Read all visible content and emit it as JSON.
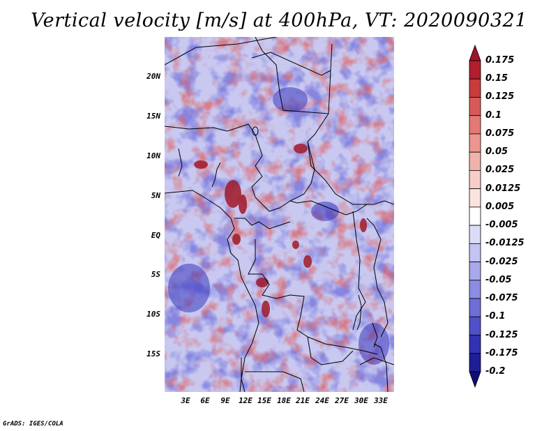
{
  "title": "Vertical velocity [m/s] at 400hPa, VT: 2020090321",
  "lat_labels": [
    "20N",
    "15N",
    "10N",
    "5N",
    "EQ",
    "5S",
    "10S",
    "15S"
  ],
  "lon_labels": [
    "3E",
    "6E",
    "9E",
    "12E",
    "15E",
    "18E",
    "21E",
    "24E",
    "27E",
    "30E",
    "33E"
  ],
  "colorbar": {
    "levels": [
      "0.175",
      "0.15",
      "0.125",
      "0.1",
      "0.075",
      "0.05",
      "0.025",
      "0.0125",
      "0.005",
      "-0.005",
      "-0.0125",
      "-0.025",
      "-0.05",
      "-0.075",
      "-0.1",
      "-0.125",
      "-0.175",
      "-0.2"
    ],
    "colors": [
      "#a0142a",
      "#b21e2e",
      "#c83c3c",
      "#d85a58",
      "#e47a74",
      "#ec9690",
      "#f2b2ac",
      "#f8cdc8",
      "#fbe4e0",
      "#ffffff",
      "#dcdcf8",
      "#c4c4f2",
      "#a8a8ec",
      "#8c8ce4",
      "#6e6ed8",
      "#5050c8",
      "#3232b4",
      "#1e1e96",
      "#120c78"
    ]
  },
  "footer": "GrADS: IGES/COLA"
}
